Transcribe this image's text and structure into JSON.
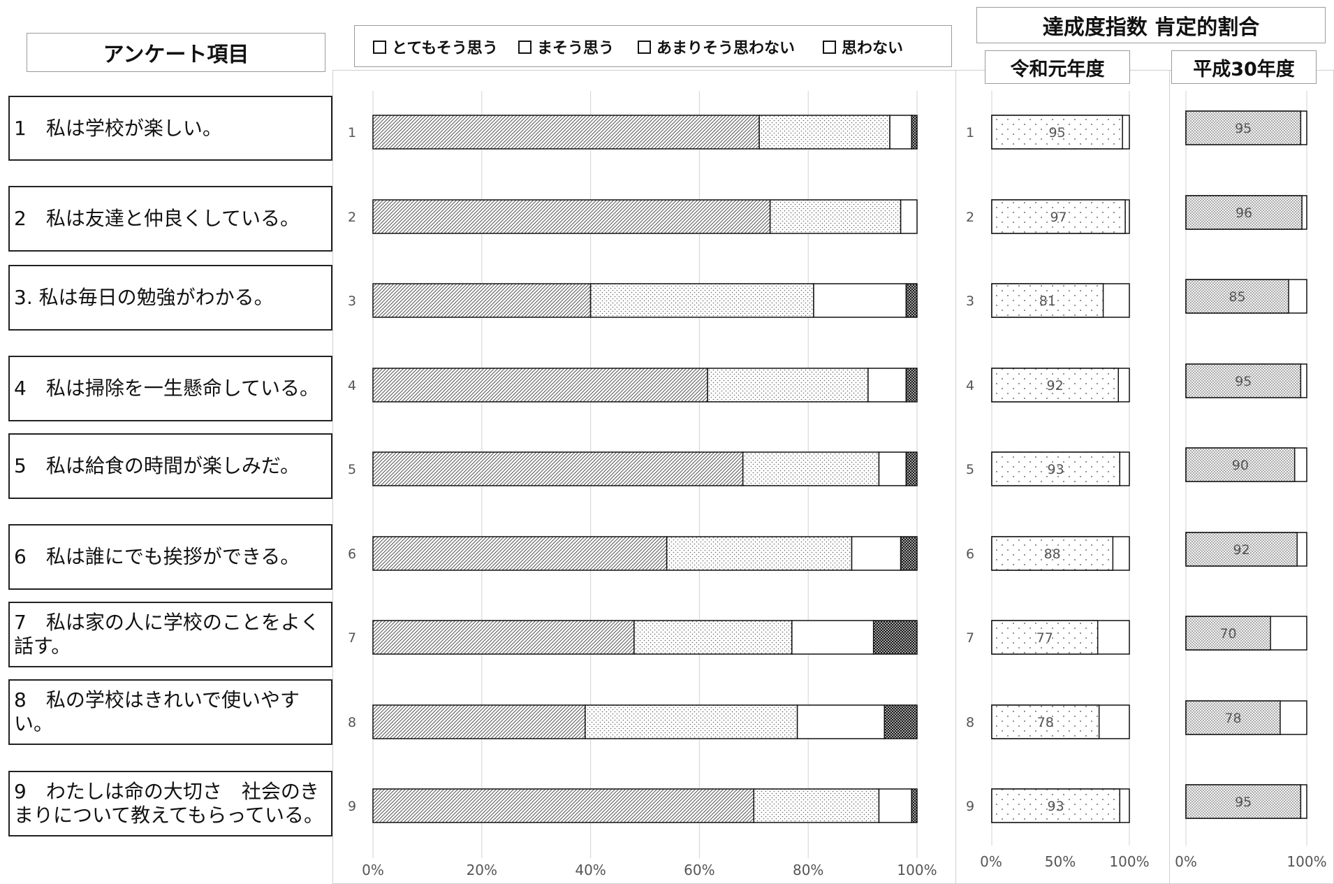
{
  "survey_header": "アンケート項目",
  "index_header": "達成度指数 肯定的割合",
  "items": [
    "1　私は学校が楽しい。",
    "2　私は友達と仲良くしている。",
    "3. 私は毎日の勉強がわかる。",
    "4　私は掃除を一生懸命している。",
    "5　私は給食の時間が楽しみだ。",
    "6　私は誰にでも挨拶ができる。",
    "7　私は家の人に学校のことをよく話す。",
    "8　私の学校はきれいで使いやすい。",
    "9　わたしは命の大切さ　社会のきまりについて教えてもらっている。"
  ],
  "legend": [
    "とてもそう思う",
    "まそう思う",
    "あまりそう思わない",
    "思わない"
  ],
  "chart_data": [
    {
      "type": "bar",
      "orientation": "horizontal",
      "stacked": true,
      "categories": [
        "1",
        "2",
        "3",
        "4",
        "5",
        "6",
        "7",
        "8",
        "9"
      ],
      "series": [
        {
          "name": "とてもそう思う",
          "values": [
            71,
            73,
            40,
            61.5,
            68,
            54,
            48,
            39,
            70
          ]
        },
        {
          "name": "まそう思う",
          "values": [
            24,
            24,
            41,
            29.5,
            25,
            34,
            29,
            39,
            23
          ]
        },
        {
          "name": "あまりそう思わない",
          "values": [
            4,
            3,
            17,
            7,
            5,
            9,
            15,
            16,
            6
          ]
        },
        {
          "name": "思わない",
          "values": [
            1,
            0,
            2,
            2,
            2,
            3,
            8,
            6,
            1
          ]
        }
      ],
      "xlim": [
        0,
        100
      ],
      "xticks": [
        "0%",
        "20%",
        "40%",
        "60%",
        "80%",
        "100%"
      ],
      "grid": true
    },
    {
      "type": "bar",
      "orientation": "horizontal",
      "title": "令和元年度",
      "categories": [
        "1",
        "2",
        "3",
        "4",
        "5",
        "6",
        "7",
        "8",
        "9"
      ],
      "values": [
        95,
        97,
        81,
        92,
        93,
        88,
        77,
        78,
        93
      ],
      "xlim": [
        0,
        100
      ],
      "xticks": [
        "0%",
        "50%",
        "100%"
      ]
    },
    {
      "type": "bar",
      "orientation": "horizontal",
      "title": "平成30年度",
      "categories": [
        "1",
        "2",
        "3",
        "4",
        "5",
        "6",
        "7",
        "8",
        "9"
      ],
      "values": [
        95,
        96,
        85,
        95,
        90,
        92,
        70,
        78,
        95
      ],
      "xlim": [
        0,
        100
      ],
      "xticks": [
        "0%",
        "100%"
      ]
    }
  ]
}
